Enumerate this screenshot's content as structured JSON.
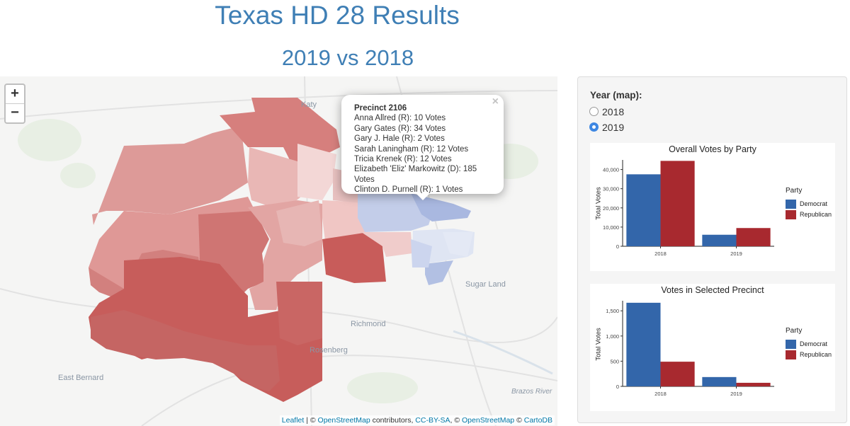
{
  "header": {
    "title": "Texas HD 28 Results",
    "subtitle": "2019 vs 2018"
  },
  "map": {
    "zoom_in": "+",
    "zoom_out": "−",
    "places": [
      "Sugar Land",
      "Richmond",
      "Rosenberg",
      "East Bernard",
      "Brazos River",
      "Katy"
    ],
    "popup": {
      "title": "Precinct 2106",
      "close": "×",
      "lines": [
        "Anna Allred (R): 10 Votes",
        "Gary Gates (R): 34 Votes",
        "Gary J. Hale (R): 2 Votes",
        "Sarah Laningham (R): 12 Votes",
        "Tricia Krenek (R): 12 Votes",
        "Elizabeth 'Eliz' Markowitz (D): 185 Votes",
        "Clinton D. Purnell (R): 1 Votes"
      ]
    },
    "attribution": {
      "leaflet": "Leaflet",
      "sep1": " | © ",
      "osm1": "OpenStreetMap",
      "contrib": " contributors, ",
      "license": "CC-BY-SA",
      "sep2": ", © ",
      "osm2": "OpenStreetMap",
      "sep3": " © ",
      "carto": "CartoDB"
    }
  },
  "sidebar": {
    "year_label": "Year (map):",
    "options": [
      {
        "label": "2018",
        "checked": false
      },
      {
        "label": "2019",
        "checked": true
      }
    ]
  },
  "colors": {
    "democrat": "#3366aa",
    "republican": "#a8292f",
    "accent": "#3f7fb5"
  },
  "chart_data": [
    {
      "type": "bar",
      "title": "Overall Votes by Party",
      "ylabel": "Total Votes",
      "categories": [
        "2018",
        "2019"
      ],
      "ylim": [
        0,
        45000
      ],
      "yticks": [
        0,
        10000,
        20000,
        30000,
        40000
      ],
      "ytick_labels": [
        "0",
        "10,000",
        "20,000",
        "30,000",
        "40,000"
      ],
      "legend_title": "Party",
      "series": [
        {
          "name": "Democrat",
          "values": [
            37500,
            6000
          ]
        },
        {
          "name": "Republican",
          "values": [
            44500,
            9500
          ]
        }
      ]
    },
    {
      "type": "bar",
      "title": "Votes in Selected Precinct",
      "ylabel": "Total Votes",
      "categories": [
        "2018",
        "2019"
      ],
      "ylim": [
        0,
        1700
      ],
      "yticks": [
        0,
        500,
        1000,
        1500
      ],
      "ytick_labels": [
        "0",
        "500",
        "1,000",
        "1,500"
      ],
      "legend_title": "Party",
      "series": [
        {
          "name": "Democrat",
          "values": [
            1660,
            185
          ]
        },
        {
          "name": "Republican",
          "values": [
            490,
            71
          ]
        }
      ]
    }
  ]
}
